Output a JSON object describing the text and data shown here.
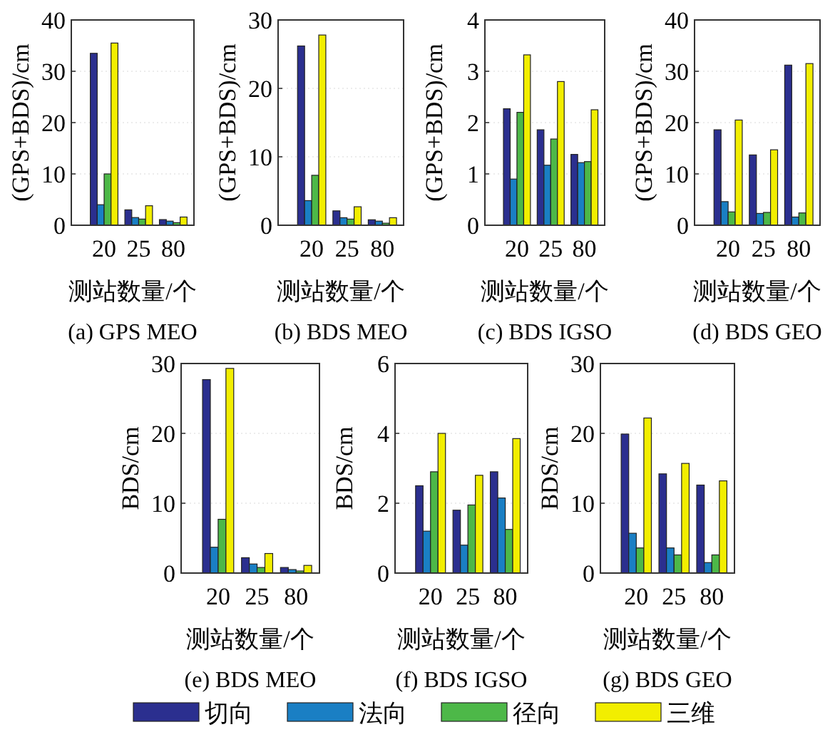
{
  "chart_data": [
    {
      "type": "bar",
      "title": "(a) GPS MEO",
      "xlabel": "测站数量/个",
      "ylabel": "(GPS+BDS)/cm",
      "categories": [
        "20",
        "25",
        "80"
      ],
      "ylim": [
        0,
        40
      ],
      "yticks": [
        0,
        10,
        20,
        30,
        40
      ],
      "grid": "y",
      "series": [
        {
          "color": "#2b2f8f",
          "values": [
            33.5,
            3,
            1.1
          ]
        },
        {
          "color": "#1a7fc4",
          "values": [
            4,
            1.5,
            0.8
          ]
        },
        {
          "color": "#4db848",
          "values": [
            10,
            1.2,
            0.5
          ]
        },
        {
          "color": "#f2ee00",
          "values": [
            35.5,
            3.8,
            1.6
          ]
        }
      ]
    },
    {
      "type": "bar",
      "title": "(b) BDS MEO",
      "xlabel": "测站数量/个",
      "ylabel": "(GPS+BDS)/cm",
      "categories": [
        "20",
        "25",
        "80"
      ],
      "ylim": [
        0,
        30
      ],
      "yticks": [
        0,
        10,
        20,
        30
      ],
      "grid": "y",
      "series": [
        {
          "color": "#2b2f8f",
          "values": [
            26.2,
            2.1,
            0.8
          ]
        },
        {
          "color": "#1a7fc4",
          "values": [
            3.6,
            1.1,
            0.6
          ]
        },
        {
          "color": "#4db848",
          "values": [
            7.3,
            0.9,
            0.3
          ]
        },
        {
          "color": "#f2ee00",
          "values": [
            27.8,
            2.7,
            1.1
          ]
        }
      ]
    },
    {
      "type": "bar",
      "title": "(c) BDS IGSO",
      "xlabel": "测站数量/个",
      "ylabel": "(GPS+BDS)/cm",
      "categories": [
        "20",
        "25",
        "80"
      ],
      "ylim": [
        0,
        4
      ],
      "yticks": [
        0,
        1,
        2,
        3,
        4
      ],
      "grid": "y",
      "series": [
        {
          "color": "#2b2f8f",
          "values": [
            2.27,
            1.86,
            1.38
          ]
        },
        {
          "color": "#1a7fc4",
          "values": [
            0.9,
            1.17,
            1.22
          ]
        },
        {
          "color": "#4db848",
          "values": [
            2.2,
            1.68,
            1.24
          ]
        },
        {
          "color": "#f2ee00",
          "values": [
            3.32,
            2.8,
            2.25
          ]
        }
      ]
    },
    {
      "type": "bar",
      "title": "(d) BDS GEO",
      "xlabel": "测站数量/个",
      "ylabel": "(GPS+BDS)/cm",
      "categories": [
        "20",
        "25",
        "80"
      ],
      "ylim": [
        0,
        40
      ],
      "yticks": [
        0,
        10,
        20,
        30,
        40
      ],
      "grid": "y",
      "series": [
        {
          "color": "#2b2f8f",
          "values": [
            18.6,
            13.7,
            31.2
          ]
        },
        {
          "color": "#1a7fc4",
          "values": [
            4.6,
            2.3,
            1.6
          ]
        },
        {
          "color": "#4db848",
          "values": [
            2.6,
            2.5,
            2.4
          ]
        },
        {
          "color": "#f2ee00",
          "values": [
            20.5,
            14.7,
            31.5
          ]
        }
      ]
    },
    {
      "type": "bar",
      "title": "(e) BDS MEO",
      "xlabel": "测站数量/个",
      "ylabel": "BDS/cm",
      "categories": [
        "20",
        "25",
        "80"
      ],
      "ylim": [
        0,
        30
      ],
      "yticks": [
        0,
        10,
        20,
        30
      ],
      "grid": "y",
      "series": [
        {
          "color": "#2b2f8f",
          "values": [
            27.7,
            2.2,
            0.8
          ]
        },
        {
          "color": "#1a7fc4",
          "values": [
            3.7,
            1.3,
            0.5
          ]
        },
        {
          "color": "#4db848",
          "values": [
            7.7,
            0.8,
            0.3
          ]
        },
        {
          "color": "#f2ee00",
          "values": [
            29.3,
            2.8,
            1.1
          ]
        }
      ]
    },
    {
      "type": "bar",
      "title": "(f) BDS IGSO",
      "xlabel": "测站数量/个",
      "ylabel": "BDS/cm",
      "categories": [
        "20",
        "25",
        "80"
      ],
      "ylim": [
        0,
        6
      ],
      "yticks": [
        0,
        2,
        4,
        6
      ],
      "grid": "y",
      "series": [
        {
          "color": "#2b2f8f",
          "values": [
            2.5,
            1.8,
            2.9
          ]
        },
        {
          "color": "#1a7fc4",
          "values": [
            1.2,
            0.8,
            2.15
          ]
        },
        {
          "color": "#4db848",
          "values": [
            2.9,
            1.95,
            1.25
          ]
        },
        {
          "color": "#f2ee00",
          "values": [
            4.0,
            2.8,
            3.85
          ]
        }
      ]
    },
    {
      "type": "bar",
      "title": "(g) BDS GEO",
      "xlabel": "测站数量/个",
      "ylabel": "BDS/cm",
      "categories": [
        "20",
        "25",
        "80"
      ],
      "ylim": [
        0,
        30
      ],
      "yticks": [
        0,
        10,
        20,
        30
      ],
      "grid": "y",
      "legend": "bottom",
      "series": [
        {
          "name": "切向",
          "color": "#2b2f8f",
          "values": [
            19.9,
            14.2,
            12.6
          ]
        },
        {
          "name": "法向",
          "color": "#1a7fc4",
          "values": [
            5.7,
            3.6,
            1.5
          ]
        },
        {
          "name": "径向",
          "color": "#4db848",
          "values": [
            3.6,
            2.6,
            2.6
          ]
        },
        {
          "name": "三维",
          "color": "#f2ee00",
          "values": [
            22.2,
            15.7,
            13.2
          ]
        }
      ]
    }
  ]
}
